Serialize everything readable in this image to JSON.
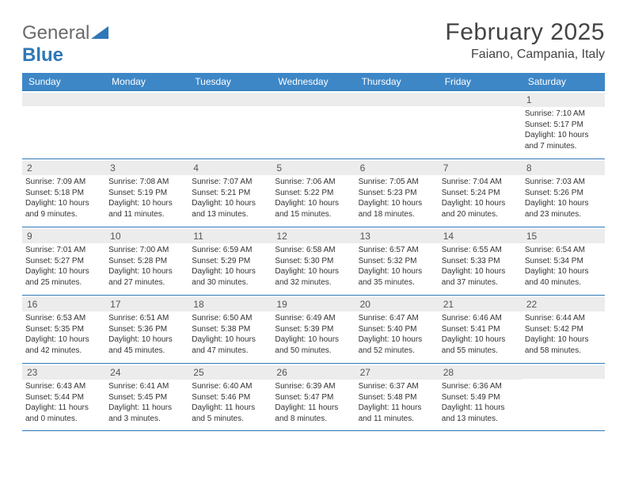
{
  "logo": {
    "word1": "General",
    "word2": "Blue"
  },
  "header": {
    "month_title": "February 2025",
    "location": "Faiano, Campania, Italy"
  },
  "colors": {
    "header_bar": "#3d87c7",
    "week_border": "#2e78b7",
    "strip_bg": "#ececec",
    "text": "#333333",
    "logo_gray": "#6a6a6a",
    "logo_blue": "#2e78b7"
  },
  "typography": {
    "title_size": 30,
    "location_size": 16,
    "dayheader_size": 12,
    "cell_size": 10
  },
  "day_names": [
    "Sunday",
    "Monday",
    "Tuesday",
    "Wednesday",
    "Thursday",
    "Friday",
    "Saturday"
  ],
  "weeks": [
    [
      {
        "blank": true
      },
      {
        "blank": true
      },
      {
        "blank": true
      },
      {
        "blank": true
      },
      {
        "blank": true
      },
      {
        "blank": true
      },
      {
        "day": "1",
        "sunrise": "Sunrise: 7:10 AM",
        "sunset": "Sunset: 5:17 PM",
        "daylight": "Daylight: 10 hours and 7 minutes."
      }
    ],
    [
      {
        "day": "2",
        "sunrise": "Sunrise: 7:09 AM",
        "sunset": "Sunset: 5:18 PM",
        "daylight": "Daylight: 10 hours and 9 minutes."
      },
      {
        "day": "3",
        "sunrise": "Sunrise: 7:08 AM",
        "sunset": "Sunset: 5:19 PM",
        "daylight": "Daylight: 10 hours and 11 minutes."
      },
      {
        "day": "4",
        "sunrise": "Sunrise: 7:07 AM",
        "sunset": "Sunset: 5:21 PM",
        "daylight": "Daylight: 10 hours and 13 minutes."
      },
      {
        "day": "5",
        "sunrise": "Sunrise: 7:06 AM",
        "sunset": "Sunset: 5:22 PM",
        "daylight": "Daylight: 10 hours and 15 minutes."
      },
      {
        "day": "6",
        "sunrise": "Sunrise: 7:05 AM",
        "sunset": "Sunset: 5:23 PM",
        "daylight": "Daylight: 10 hours and 18 minutes."
      },
      {
        "day": "7",
        "sunrise": "Sunrise: 7:04 AM",
        "sunset": "Sunset: 5:24 PM",
        "daylight": "Daylight: 10 hours and 20 minutes."
      },
      {
        "day": "8",
        "sunrise": "Sunrise: 7:03 AM",
        "sunset": "Sunset: 5:26 PM",
        "daylight": "Daylight: 10 hours and 23 minutes."
      }
    ],
    [
      {
        "day": "9",
        "sunrise": "Sunrise: 7:01 AM",
        "sunset": "Sunset: 5:27 PM",
        "daylight": "Daylight: 10 hours and 25 minutes."
      },
      {
        "day": "10",
        "sunrise": "Sunrise: 7:00 AM",
        "sunset": "Sunset: 5:28 PM",
        "daylight": "Daylight: 10 hours and 27 minutes."
      },
      {
        "day": "11",
        "sunrise": "Sunrise: 6:59 AM",
        "sunset": "Sunset: 5:29 PM",
        "daylight": "Daylight: 10 hours and 30 minutes."
      },
      {
        "day": "12",
        "sunrise": "Sunrise: 6:58 AM",
        "sunset": "Sunset: 5:30 PM",
        "daylight": "Daylight: 10 hours and 32 minutes."
      },
      {
        "day": "13",
        "sunrise": "Sunrise: 6:57 AM",
        "sunset": "Sunset: 5:32 PM",
        "daylight": "Daylight: 10 hours and 35 minutes."
      },
      {
        "day": "14",
        "sunrise": "Sunrise: 6:55 AM",
        "sunset": "Sunset: 5:33 PM",
        "daylight": "Daylight: 10 hours and 37 minutes."
      },
      {
        "day": "15",
        "sunrise": "Sunrise: 6:54 AM",
        "sunset": "Sunset: 5:34 PM",
        "daylight": "Daylight: 10 hours and 40 minutes."
      }
    ],
    [
      {
        "day": "16",
        "sunrise": "Sunrise: 6:53 AM",
        "sunset": "Sunset: 5:35 PM",
        "daylight": "Daylight: 10 hours and 42 minutes."
      },
      {
        "day": "17",
        "sunrise": "Sunrise: 6:51 AM",
        "sunset": "Sunset: 5:36 PM",
        "daylight": "Daylight: 10 hours and 45 minutes."
      },
      {
        "day": "18",
        "sunrise": "Sunrise: 6:50 AM",
        "sunset": "Sunset: 5:38 PM",
        "daylight": "Daylight: 10 hours and 47 minutes."
      },
      {
        "day": "19",
        "sunrise": "Sunrise: 6:49 AM",
        "sunset": "Sunset: 5:39 PM",
        "daylight": "Daylight: 10 hours and 50 minutes."
      },
      {
        "day": "20",
        "sunrise": "Sunrise: 6:47 AM",
        "sunset": "Sunset: 5:40 PM",
        "daylight": "Daylight: 10 hours and 52 minutes."
      },
      {
        "day": "21",
        "sunrise": "Sunrise: 6:46 AM",
        "sunset": "Sunset: 5:41 PM",
        "daylight": "Daylight: 10 hours and 55 minutes."
      },
      {
        "day": "22",
        "sunrise": "Sunrise: 6:44 AM",
        "sunset": "Sunset: 5:42 PM",
        "daylight": "Daylight: 10 hours and 58 minutes."
      }
    ],
    [
      {
        "day": "23",
        "sunrise": "Sunrise: 6:43 AM",
        "sunset": "Sunset: 5:44 PM",
        "daylight": "Daylight: 11 hours and 0 minutes."
      },
      {
        "day": "24",
        "sunrise": "Sunrise: 6:41 AM",
        "sunset": "Sunset: 5:45 PM",
        "daylight": "Daylight: 11 hours and 3 minutes."
      },
      {
        "day": "25",
        "sunrise": "Sunrise: 6:40 AM",
        "sunset": "Sunset: 5:46 PM",
        "daylight": "Daylight: 11 hours and 5 minutes."
      },
      {
        "day": "26",
        "sunrise": "Sunrise: 6:39 AM",
        "sunset": "Sunset: 5:47 PM",
        "daylight": "Daylight: 11 hours and 8 minutes."
      },
      {
        "day": "27",
        "sunrise": "Sunrise: 6:37 AM",
        "sunset": "Sunset: 5:48 PM",
        "daylight": "Daylight: 11 hours and 11 minutes."
      },
      {
        "day": "28",
        "sunrise": "Sunrise: 6:36 AM",
        "sunset": "Sunset: 5:49 PM",
        "daylight": "Daylight: 11 hours and 13 minutes."
      },
      {
        "blank": true
      }
    ]
  ]
}
